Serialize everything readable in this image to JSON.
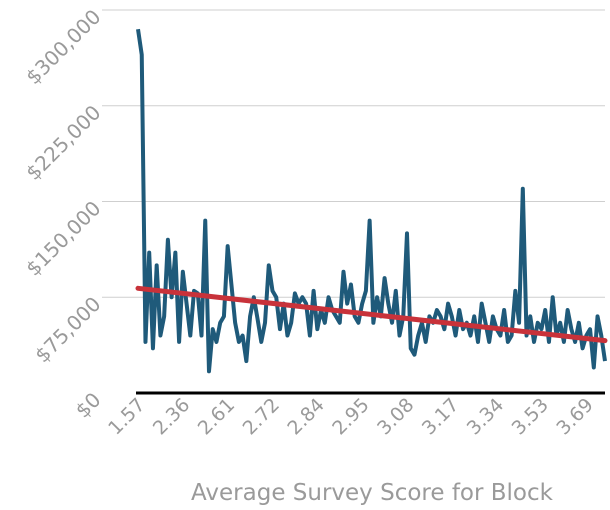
{
  "chart_data": {
    "type": "line",
    "x_label": "Average Survey Score for Block",
    "categories": [
      "1.57",
      null,
      null,
      null,
      null,
      null,
      null,
      null,
      null,
      null,
      null,
      null,
      "2.36",
      null,
      null,
      null,
      null,
      null,
      null,
      null,
      null,
      null,
      null,
      null,
      "2.61",
      null,
      null,
      null,
      null,
      null,
      null,
      null,
      null,
      null,
      null,
      null,
      "2.72",
      null,
      null,
      null,
      null,
      null,
      null,
      null,
      null,
      null,
      null,
      null,
      "2.84",
      null,
      null,
      null,
      null,
      null,
      null,
      null,
      null,
      null,
      null,
      null,
      "2.95",
      null,
      null,
      null,
      null,
      null,
      null,
      null,
      null,
      null,
      null,
      null,
      "3.08",
      null,
      null,
      null,
      null,
      null,
      null,
      null,
      null,
      null,
      null,
      null,
      "3.17",
      null,
      null,
      null,
      null,
      null,
      null,
      null,
      null,
      null,
      null,
      null,
      "3.34",
      null,
      null,
      null,
      null,
      null,
      null,
      null,
      null,
      null,
      null,
      null,
      "3.53",
      null,
      null,
      null,
      null,
      null,
      null,
      null,
      null,
      null,
      null,
      null,
      "3.69",
      null,
      null,
      null,
      null,
      null
    ],
    "series": [
      {
        "color": "#1f5a7a",
        "values": [
          285000,
          265000,
          40000,
          110000,
          35000,
          100000,
          45000,
          60000,
          120000,
          75000,
          110000,
          40000,
          95000,
          70000,
          45000,
          80000,
          78000,
          45000,
          135000,
          17000,
          50000,
          40000,
          55000,
          60000,
          115000,
          85000,
          55000,
          40000,
          45000,
          25000,
          60000,
          75000,
          58000,
          40000,
          55000,
          100000,
          80000,
          75000,
          50000,
          70000,
          45000,
          55000,
          78000,
          70000,
          75000,
          70000,
          45000,
          80000,
          50000,
          65000,
          55000,
          75000,
          65000,
          60000,
          55000,
          95000,
          70000,
          85000,
          60000,
          55000,
          70000,
          80000,
          135000,
          55000,
          75000,
          60000,
          90000,
          70000,
          55000,
          80000,
          45000,
          60000,
          125000,
          35000,
          30000,
          45000,
          55000,
          40000,
          60000,
          55000,
          65000,
          60000,
          50000,
          70000,
          60000,
          45000,
          65000,
          50000,
          55000,
          45000,
          60000,
          40000,
          70000,
          55000,
          40000,
          60000,
          50000,
          45000,
          65000,
          40000,
          45000,
          80000,
          55000,
          160000,
          45000,
          60000,
          40000,
          55000,
          50000,
          65000,
          40000,
          75000,
          45000,
          55000,
          40000,
          65000,
          50000,
          40000,
          55000,
          35000,
          45000,
          50000,
          20000,
          60000,
          45000,
          25000
        ]
      }
    ],
    "trendline": {
      "color": "#c8323a",
      "values": [
        82000,
        41000
      ]
    },
    "ylim": [
      0,
      300000
    ],
    "yticks": [
      {
        "value": 0,
        "label": "$0"
      },
      {
        "value": 75000,
        "label": "$75,000"
      },
      {
        "value": 150000,
        "label": "$150,000"
      },
      {
        "value": 225000,
        "label": "$225,000"
      },
      {
        "value": 300000,
        "label": "$300,000"
      }
    ],
    "grid": true
  }
}
